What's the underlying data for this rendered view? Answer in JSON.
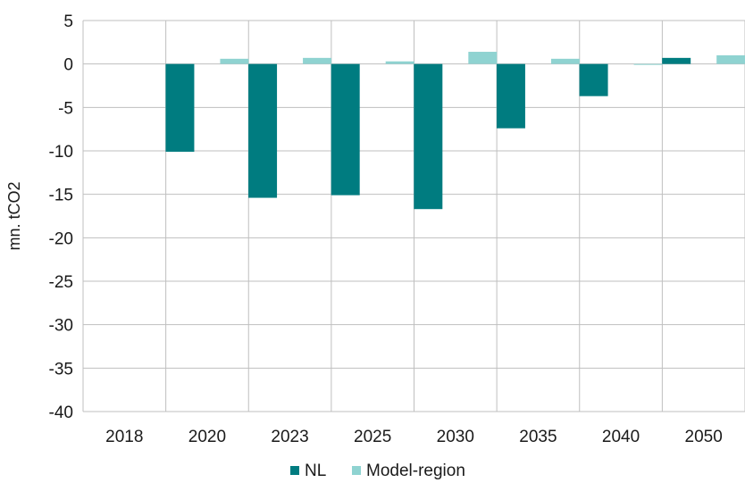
{
  "chart_data": {
    "type": "bar",
    "title": "",
    "xlabel": "",
    "ylabel": "mn. tCO2",
    "ylim": [
      -40,
      5
    ],
    "yticks": [
      5,
      0,
      -5,
      -10,
      -15,
      -20,
      -25,
      -30,
      -35,
      -40
    ],
    "categories": [
      "2018",
      "2020",
      "2023",
      "2025",
      "2030",
      "2035",
      "2040",
      "2050"
    ],
    "series": [
      {
        "name": "NL",
        "color": "#007C80",
        "values": [
          0,
          -10.1,
          -15.4,
          -15.1,
          -16.7,
          -7.4,
          -3.7,
          0.7
        ]
      },
      {
        "name": "Model-region",
        "color": "#8FD3D1",
        "values": [
          0,
          0.6,
          0.7,
          0.3,
          1.4,
          0.6,
          -0.1,
          1.0
        ]
      }
    ],
    "grid": {
      "horizontal": true,
      "vertical_category_separators": true,
      "color": "#BFBFBF"
    },
    "legend": {
      "position": "bottom",
      "entries": [
        "NL",
        "Model-region"
      ]
    }
  }
}
